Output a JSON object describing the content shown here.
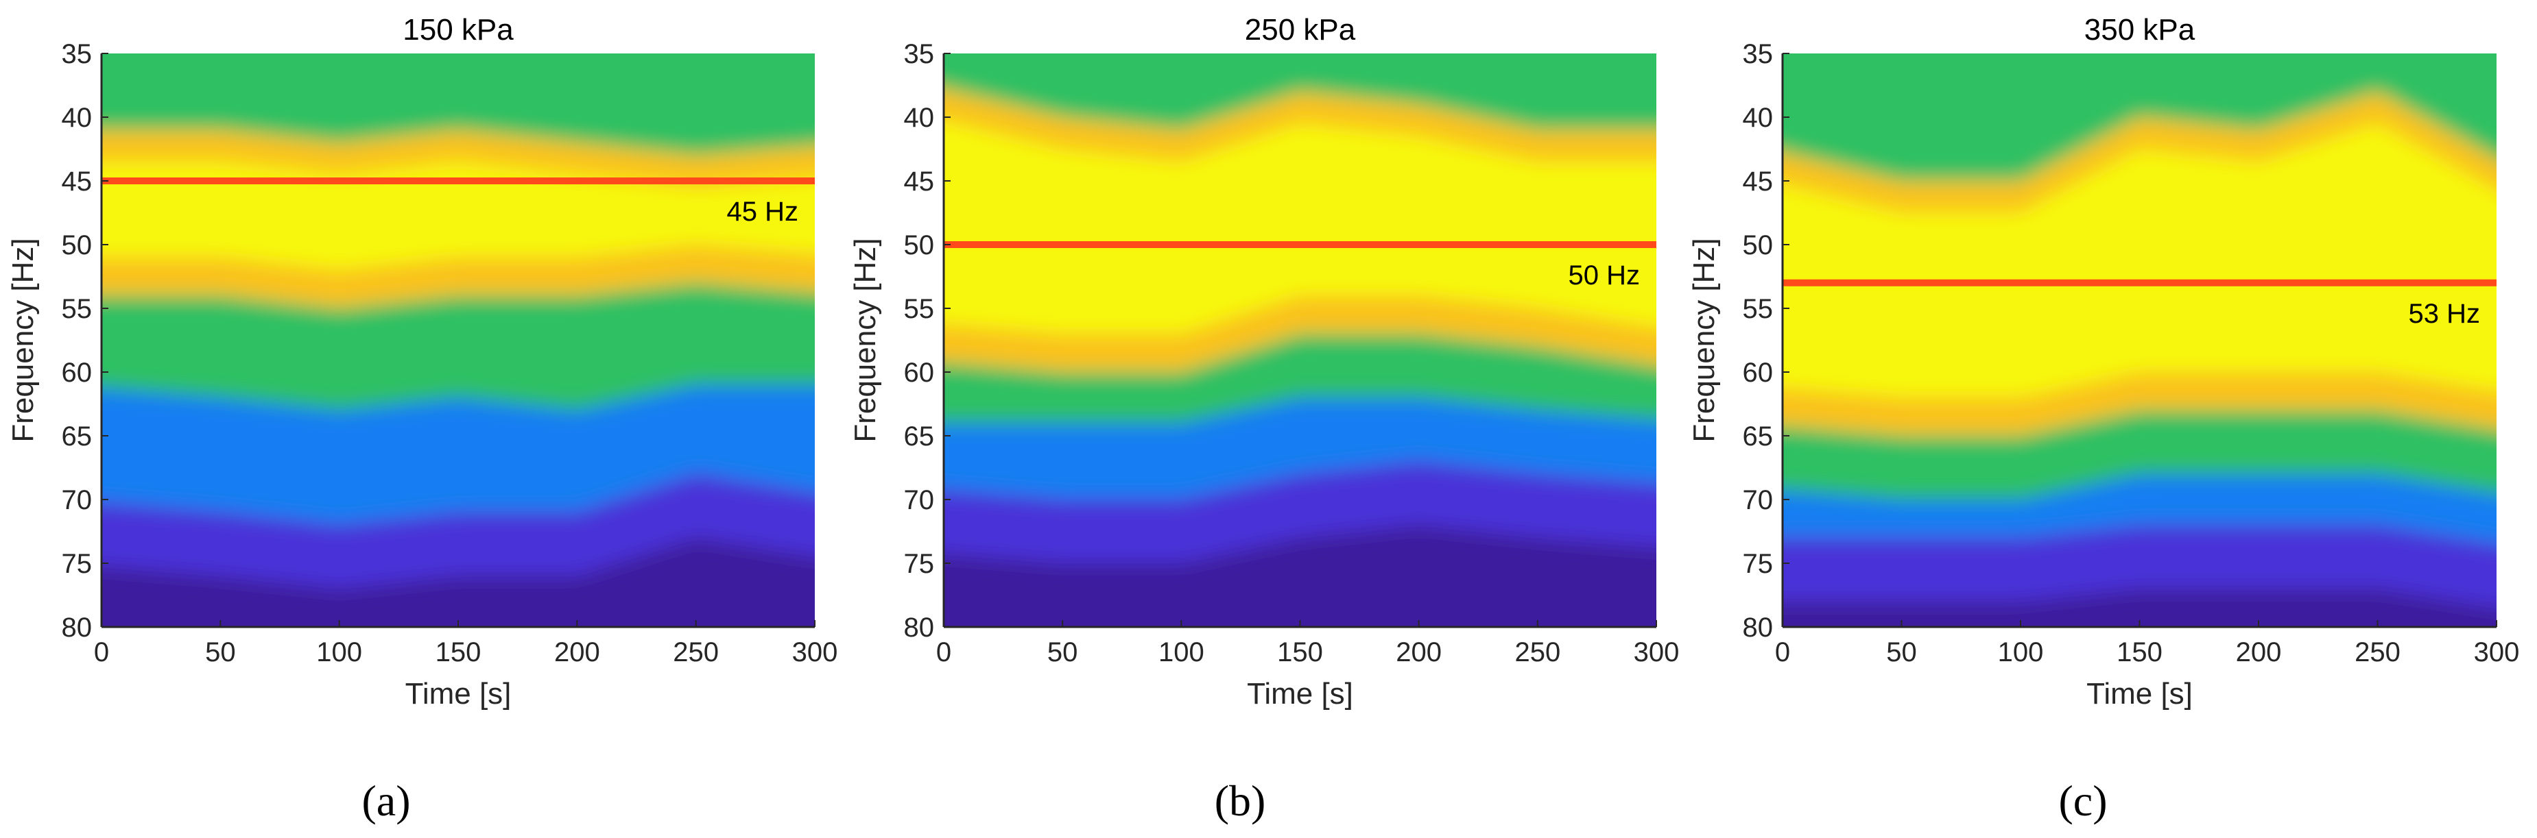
{
  "chart_data": [
    {
      "panel": "(a)",
      "type": "heatmap",
      "title": "150 kPa",
      "xlabel": "Time [s]",
      "ylabel": "Frequency [Hz]",
      "xlim": [
        0,
        300
      ],
      "ylim": [
        35,
        80
      ],
      "y_reversed": true,
      "xticks": [
        0,
        50,
        100,
        150,
        200,
        250,
        300
      ],
      "yticks": [
        35,
        40,
        45,
        50,
        55,
        60,
        65,
        70,
        75,
        80
      ],
      "reference_line": {
        "value": 45,
        "label": "45 Hz",
        "color": "#ff4a1c"
      },
      "bands": {
        "time": [
          0,
          50,
          100,
          150,
          200,
          250,
          300
        ],
        "upper_yellow_edge": [
          41,
          41,
          42,
          41,
          42,
          43,
          42
        ],
        "yellow_green_edge": [
          54,
          54,
          55,
          54,
          54,
          53,
          54
        ],
        "green_blue_edge": [
          61,
          62,
          63,
          62,
          63,
          61,
          61
        ],
        "blue_purple_edge": [
          70,
          71,
          72,
          71,
          71,
          68,
          70
        ]
      }
    },
    {
      "panel": "(b)",
      "type": "heatmap",
      "title": "250 kPa",
      "xlabel": "Time [s]",
      "ylabel": "Frequency [Hz]",
      "xlim": [
        0,
        300
      ],
      "ylim": [
        35,
        80
      ],
      "y_reversed": true,
      "xticks": [
        0,
        50,
        100,
        150,
        200,
        250,
        300
      ],
      "yticks": [
        35,
        40,
        45,
        50,
        55,
        60,
        65,
        70,
        75,
        80
      ],
      "reference_line": {
        "value": 50,
        "label": "50 Hz",
        "color": "#ff4a1c"
      },
      "bands": {
        "time": [
          0,
          50,
          100,
          150,
          200,
          250,
          300
        ],
        "upper_yellow_edge": [
          37,
          40,
          41,
          38,
          39,
          41,
          41
        ],
        "yellow_green_edge": [
          59,
          60,
          60,
          57,
          57,
          58,
          60
        ],
        "green_blue_edge": [
          64,
          64,
          64,
          62,
          62,
          63,
          64
        ],
        "blue_purple_edge": [
          69,
          70,
          70,
          68,
          67,
          68,
          69
        ]
      }
    },
    {
      "panel": "(c)",
      "type": "heatmap",
      "title": "350 kPa",
      "xlabel": "Time [s]",
      "ylabel": "Frequency [Hz]",
      "xlim": [
        0,
        300
      ],
      "ylim": [
        35,
        80
      ],
      "y_reversed": true,
      "xticks": [
        0,
        50,
        100,
        150,
        200,
        250,
        300
      ],
      "yticks": [
        35,
        40,
        45,
        50,
        55,
        60,
        65,
        70,
        75,
        80
      ],
      "reference_line": {
        "value": 53,
        "label": "53 Hz",
        "color": "#ff4a1c"
      },
      "bands": {
        "time": [
          0,
          50,
          100,
          150,
          200,
          250,
          300
        ],
        "upper_yellow_edge": [
          42,
          45,
          45,
          40,
          41,
          38,
          45
        ],
        "yellow_green_edge": [
          64,
          65,
          65,
          63,
          63,
          63,
          65
        ],
        "green_blue_edge": [
          69,
          70,
          70,
          68,
          68,
          68,
          70
        ],
        "blue_purple_edge": [
          73,
          73,
          73,
          72,
          72,
          72,
          74
        ]
      }
    }
  ],
  "colors": {
    "yellow": "#f7f707",
    "orange_yellow": "#f9c21a",
    "green": "#2fc063",
    "teal": "#16b5c5",
    "blue": "#167ef2",
    "purple": "#4a30d8",
    "deep_purple": "#3d1e9e",
    "axis": "#262626"
  }
}
